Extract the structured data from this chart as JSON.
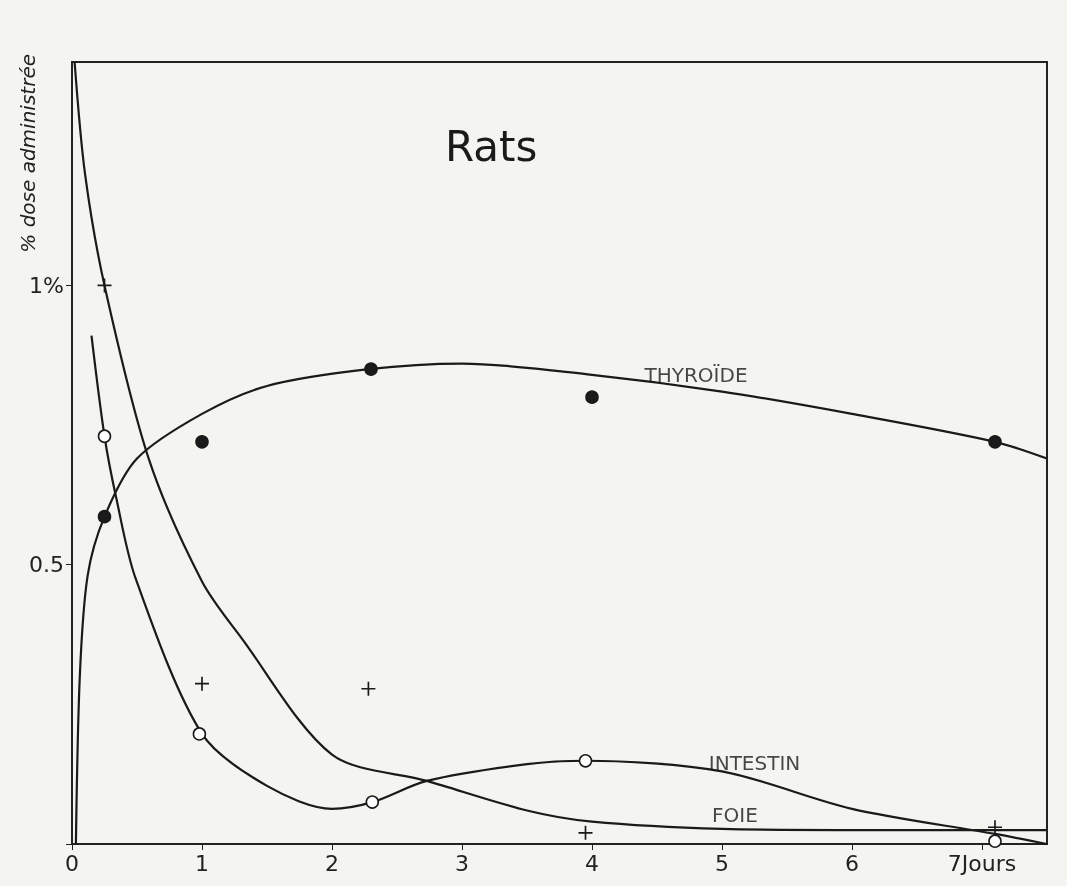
{
  "chart_data": {
    "type": "line",
    "title": "Rats",
    "ylabel": "% dose administrée",
    "xlim": [
      0,
      7.5
    ],
    "ylim": [
      0,
      1.4
    ],
    "xticks": [
      0,
      1,
      2,
      3,
      4,
      5,
      6,
      {
        "value": 7,
        "label": "7Jours"
      }
    ],
    "yticks": [
      {
        "value": 0,
        "label": null
      },
      {
        "value": 0.5,
        "label": "0.5"
      },
      {
        "value": 1,
        "label": "1%"
      }
    ],
    "grid": false,
    "series": [
      {
        "color": "#1a1a1a",
        "marker": "none",
        "line_style": "solid",
        "x": [
          0.03,
          0.06,
          0.12,
          0.25,
          0.5,
          1,
          1.5,
          2.28,
          3,
          4,
          5,
          6,
          7.1,
          7.5
        ],
        "values": [
          0,
          0.3,
          0.48,
          0.586,
          0.69,
          0.77,
          0.82,
          0.85,
          0.86,
          0.84,
          0.81,
          0.77,
          0.72,
          0.69
        ]
      },
      {
        "color": "#1a1a1a",
        "marker": "none",
        "line_style": "solid",
        "x": [
          0.02,
          0.1,
          0.25,
          0.59,
          1,
          1.3,
          2,
          2.73,
          3.5,
          4,
          5,
          6,
          7.1,
          7.5
        ],
        "values": [
          1.4,
          1.2,
          1.0,
          0.69,
          0.47,
          0.37,
          0.16,
          0.113,
          0.06,
          0.04,
          0.027,
          0.025,
          0.025,
          0.025
        ]
      },
      {
        "color": "#1a1a1a",
        "marker": "none",
        "line_style": "solid",
        "x": [
          0.15,
          0.25,
          0.34,
          0.49,
          1,
          1.5,
          2,
          2.31,
          2.73,
          3.5,
          3.95,
          5,
          6,
          7.1,
          7.5
        ],
        "values": [
          0.91,
          0.73,
          0.62,
          0.475,
          0.197,
          0.104,
          0.063,
          0.075,
          0.113,
          0.143,
          0.149,
          0.13,
          0.063,
          0.018,
          0
        ]
      },
      {
        "type": "scatter",
        "color": "#1a1a1a",
        "marker": "circle",
        "x": [
          0.25,
          1,
          2.3,
          4,
          7.1
        ],
        "values": [
          0.586,
          0.72,
          0.85,
          0.8,
          0.72
        ]
      },
      {
        "type": "scatter",
        "color": "#1a1a1a",
        "marker": "cross",
        "x": [
          0.25,
          1,
          2.28,
          3.95,
          7.1
        ],
        "values": [
          1.0,
          0.287,
          0.278,
          0.02,
          0.03
        ]
      },
      {
        "type": "scatter",
        "color": "#ffffff",
        "marker": "circle",
        "x": [
          0.25,
          0.98,
          2.31,
          3.95,
          7.1
        ],
        "values": [
          0.73,
          0.197,
          0.075,
          0.149,
          0.005
        ]
      }
    ],
    "annotations": [
      {
        "text": "THYROÏDE",
        "x": 4.8,
        "y": 0.815
      },
      {
        "text": "INTESTIN",
        "x": 5.25,
        "y": 0.12
      },
      {
        "text": "FOIE",
        "x": 5.1,
        "y": 0.027
      }
    ]
  }
}
